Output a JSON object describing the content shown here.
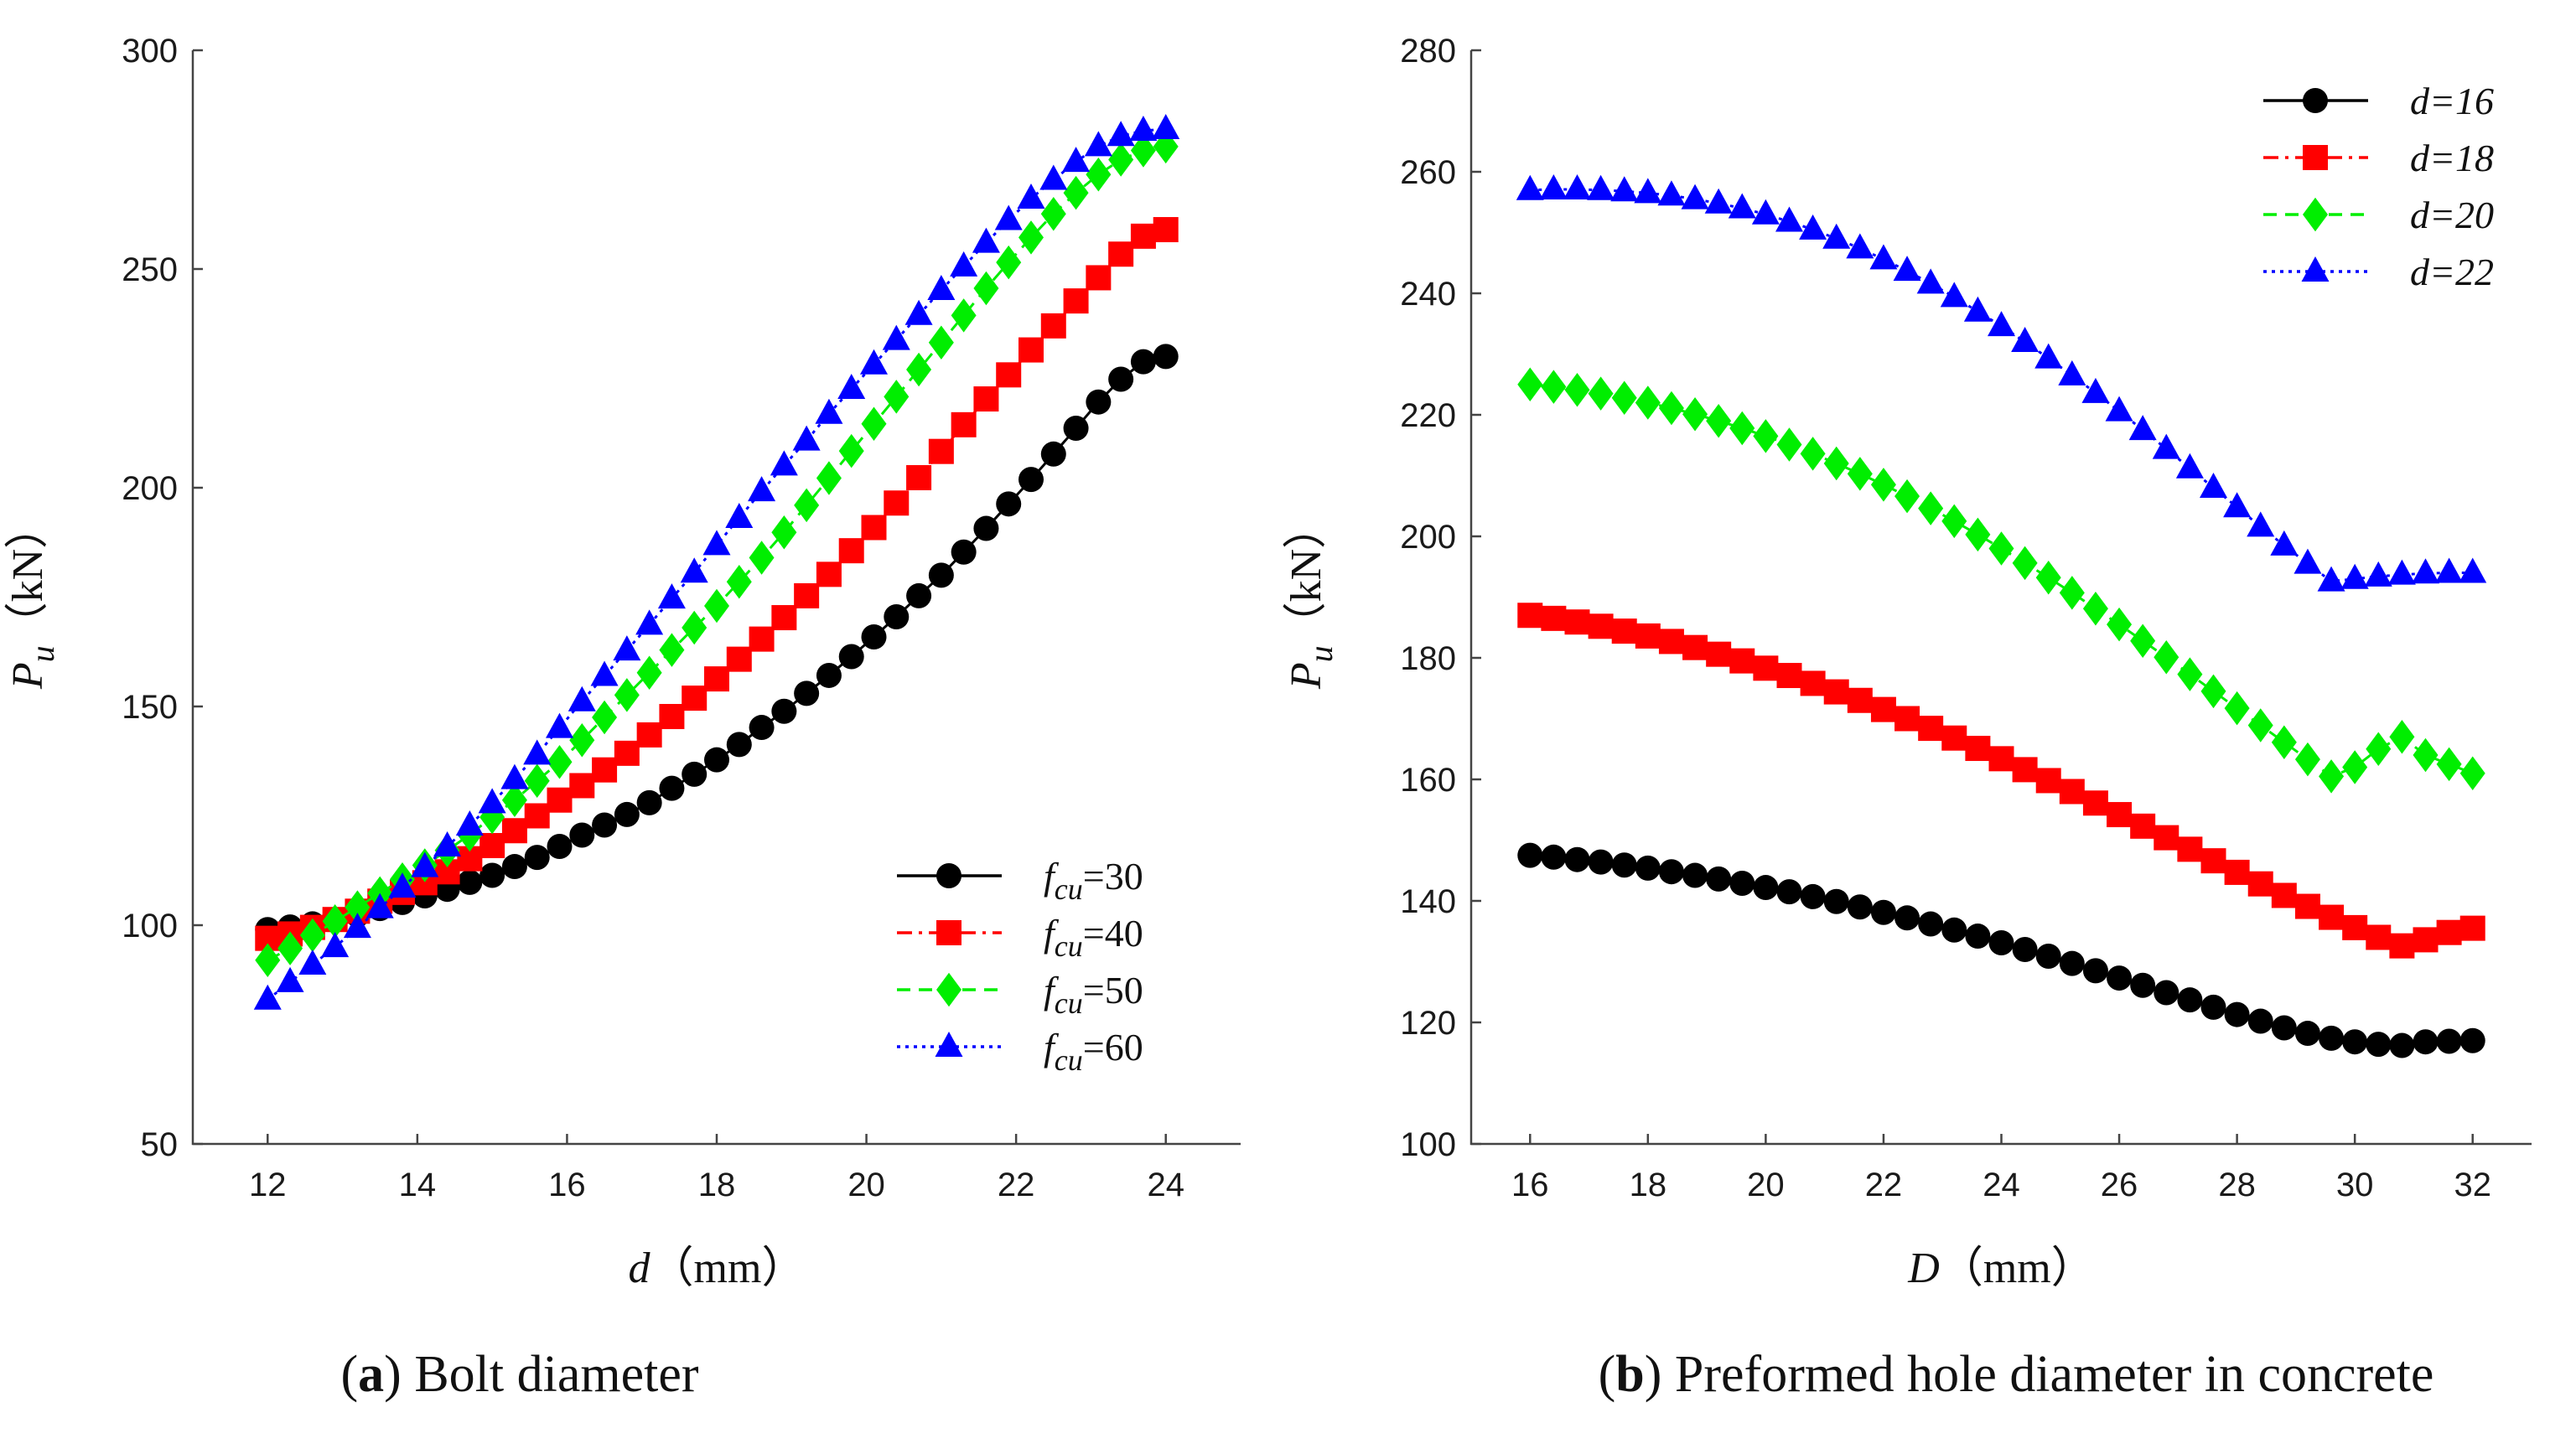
{
  "chart_data": [
    {
      "type": "line",
      "panel": "a",
      "caption_letter": "a",
      "caption_text": "Bolt diameter",
      "xlabel_var": "d",
      "xlabel_unit": "（mm）",
      "ylabel_var": "P",
      "ylabel_sub": "u",
      "ylabel_unit": "（kN）",
      "xlim": [
        11,
        25
      ],
      "ylim": [
        50,
        300
      ],
      "xticks": [
        12,
        14,
        16,
        18,
        20,
        22,
        24
      ],
      "yticks": [
        50,
        100,
        150,
        200,
        250,
        300
      ],
      "legend_position": "bottom-right",
      "x": [
        12,
        12.3,
        12.6,
        12.9,
        13.2,
        13.5,
        13.8,
        14.1,
        14.4,
        14.7,
        15.0,
        15.3,
        15.6,
        15.9,
        16.2,
        16.5,
        16.8,
        17.1,
        17.4,
        17.7,
        18.0,
        18.3,
        18.6,
        18.9,
        19.2,
        19.5,
        19.8,
        20.1,
        20.4,
        20.7,
        21.0,
        21.3,
        21.6,
        21.9,
        22.2,
        22.5,
        22.8,
        23.1,
        23.4,
        23.7,
        24.0
      ],
      "series": [
        {
          "name_base": "f",
          "name_sub": "cu",
          "name_val": "=30",
          "color": "#000000",
          "marker": "circle",
          "dash": "solid",
          "values": [
            99.0,
            99.6,
            100.3,
            101.1,
            102.4,
            103.8,
            105.2,
            106.7,
            108.2,
            109.8,
            111.4,
            113.4,
            115.5,
            118.0,
            120.6,
            122.9,
            125.3,
            128.0,
            131.3,
            134.5,
            137.8,
            141.3,
            145.2,
            148.9,
            153.0,
            157.1,
            161.4,
            165.9,
            170.5,
            175.3,
            180.0,
            185.3,
            190.7,
            196.3,
            201.9,
            207.7,
            213.6,
            219.6,
            224.8,
            228.8,
            230.0
          ]
        },
        {
          "name_base": "f",
          "name_sub": "cu",
          "name_val": "=40",
          "color": "#ff0000",
          "marker": "square",
          "dash": "dashdot",
          "values": [
            97.0,
            98.0,
            99.5,
            101.3,
            103.2,
            105.5,
            107.5,
            109.7,
            112.2,
            115.2,
            118.2,
            121.6,
            125.0,
            128.6,
            131.9,
            135.5,
            139.3,
            143.5,
            147.7,
            151.9,
            156.3,
            160.8,
            165.4,
            170.3,
            175.3,
            180.2,
            185.6,
            190.9,
            196.5,
            202.3,
            208.3,
            214.4,
            220.3,
            225.8,
            231.5,
            237.0,
            242.7,
            248.0,
            253.4,
            257.5,
            259.0
          ]
        },
        {
          "name_base": "f",
          "name_sub": "cu",
          "name_val": "=50",
          "color": "#00ee00",
          "marker": "diamond",
          "dash": "dashed",
          "values": [
            92.0,
            94.7,
            97.7,
            100.9,
            104.1,
            107.3,
            110.5,
            113.7,
            117.1,
            120.7,
            124.7,
            128.6,
            133.0,
            137.3,
            142.3,
            147.5,
            152.6,
            157.7,
            162.9,
            168.0,
            173.0,
            178.5,
            184.0,
            189.8,
            196.0,
            202.2,
            208.4,
            214.6,
            220.8,
            227.0,
            233.2,
            239.4,
            245.6,
            251.5,
            257.2,
            262.6,
            267.4,
            271.6,
            275.0,
            277.1,
            278.0
          ]
        },
        {
          "name_base": "f",
          "name_sub": "cu",
          "name_val": "=60",
          "color": "#0000ff",
          "marker": "triangle",
          "dash": "dotted",
          "values": [
            83.0,
            87.0,
            91.0,
            95.0,
            99.4,
            103.9,
            108.6,
            113.3,
            118.0,
            122.8,
            127.9,
            133.4,
            139.0,
            145.1,
            151.2,
            157.0,
            162.8,
            168.7,
            174.7,
            180.6,
            186.9,
            193.1,
            199.2,
            205.1,
            210.8,
            216.9,
            222.6,
            228.2,
            233.8,
            239.5,
            245.2,
            250.6,
            256.0,
            261.2,
            266.1,
            270.4,
            274.5,
            278.1,
            280.4,
            281.6,
            282.0
          ]
        }
      ]
    },
    {
      "type": "line",
      "panel": "b",
      "caption_letter": "b",
      "caption_text": "Preformed hole diameter in concrete",
      "xlabel_var": "D",
      "xlabel_unit": "（mm）",
      "ylabel_var": "P",
      "ylabel_sub": "u",
      "ylabel_unit": "（kN）",
      "xlim": [
        15,
        33
      ],
      "ylim": [
        100,
        280
      ],
      "xticks": [
        16,
        18,
        20,
        22,
        24,
        26,
        28,
        30,
        32
      ],
      "yticks": [
        100,
        120,
        140,
        160,
        180,
        200,
        220,
        240,
        260,
        280
      ],
      "legend_position": "top-right",
      "x": [
        16.0,
        16.4,
        16.8,
        17.2,
        17.6,
        18.0,
        18.4,
        18.8,
        19.2,
        19.6,
        20.0,
        20.4,
        20.8,
        21.2,
        21.6,
        22.0,
        22.4,
        22.8,
        23.2,
        23.6,
        24.0,
        24.4,
        24.8,
        25.2,
        25.6,
        26.0,
        26.4,
        26.8,
        27.2,
        27.6,
        28.0,
        28.4,
        28.8,
        29.2,
        29.6,
        30.0,
        30.4,
        30.8,
        31.2,
        31.6,
        32.0
      ],
      "series": [
        {
          "name": "d=16",
          "color": "#000000",
          "marker": "circle",
          "dash": "solid",
          "values": [
            147.5,
            147.2,
            146.8,
            146.4,
            145.9,
            145.4,
            144.8,
            144.2,
            143.6,
            142.9,
            142.2,
            141.5,
            140.7,
            139.9,
            139.0,
            138.1,
            137.2,
            136.2,
            135.2,
            134.2,
            133.1,
            132.0,
            130.9,
            129.7,
            128.5,
            127.3,
            126.1,
            124.9,
            123.7,
            122.5,
            121.3,
            120.2,
            119.1,
            118.2,
            117.4,
            116.8,
            116.4,
            116.2,
            116.8,
            116.9,
            117.0
          ]
        },
        {
          "name": "d=18",
          "color": "#ff0000",
          "marker": "square",
          "dash": "dashdot",
          "values": [
            187.0,
            186.5,
            185.9,
            185.2,
            184.4,
            183.6,
            182.7,
            181.7,
            180.6,
            179.5,
            178.3,
            177.1,
            175.8,
            174.4,
            173.0,
            171.5,
            170.0,
            168.4,
            166.8,
            165.1,
            163.4,
            161.6,
            159.8,
            158.0,
            156.1,
            154.2,
            152.3,
            150.4,
            148.5,
            146.6,
            144.7,
            142.8,
            140.9,
            139.1,
            137.3,
            135.6,
            134.0,
            132.6,
            133.6,
            134.8,
            135.5
          ]
        },
        {
          "name": "d=20",
          "color": "#00ee00",
          "marker": "diamond",
          "dash": "dashed",
          "values": [
            225.0,
            224.6,
            224.1,
            223.5,
            222.8,
            222.0,
            221.1,
            220.1,
            219.0,
            217.8,
            216.5,
            215.1,
            213.6,
            212.0,
            210.3,
            208.5,
            206.6,
            204.6,
            202.5,
            200.3,
            198.0,
            195.6,
            193.2,
            190.7,
            188.1,
            185.5,
            182.8,
            180.1,
            177.3,
            174.5,
            171.7,
            168.9,
            166.1,
            163.3,
            160.5,
            162.0,
            165.0,
            167.0,
            164.0,
            162.5,
            161.0
          ]
        },
        {
          "name": "d=22",
          "color": "#0000ff",
          "marker": "triangle",
          "dash": "dotted",
          "values": [
            257.0,
            257.1,
            257.1,
            257.0,
            256.8,
            256.5,
            256.1,
            255.5,
            254.8,
            254.0,
            253.0,
            251.8,
            250.5,
            249.0,
            247.4,
            245.6,
            243.7,
            241.6,
            239.4,
            237.0,
            234.6,
            232.0,
            229.3,
            226.5,
            223.6,
            220.6,
            217.5,
            214.4,
            211.2,
            208.0,
            204.8,
            201.6,
            198.5,
            195.5,
            192.6,
            193.0,
            193.4,
            193.7,
            193.9,
            194.0,
            194.0
          ]
        }
      ]
    }
  ]
}
